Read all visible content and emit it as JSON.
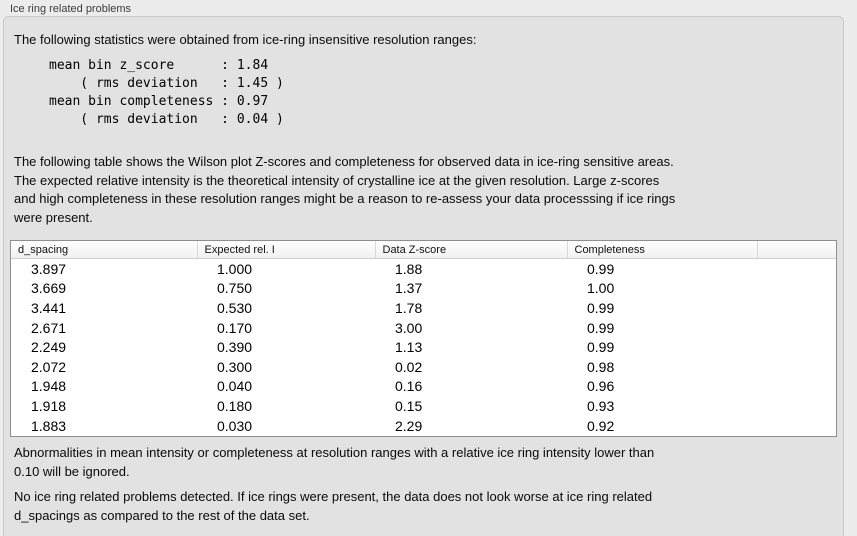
{
  "panel": {
    "title": "Ice ring related problems"
  },
  "intro_text": "The following statistics were obtained from ice-ring insensitive resolution ranges:",
  "stats_text": "mean bin z_score      : 1.84\n    ( rms deviation   : 1.45 )\nmean bin completeness : 0.97\n    ( rms deviation   : 0.04 )",
  "table_description": "The following table shows the Wilson plot Z-scores and completeness for observed data in ice-ring sensitive areas.\nThe expected relative intensity is the theoretical intensity of crystalline ice at the given resolution. Large z-scores\nand high completeness in these resolution ranges might be a reason to re-assess your data processsing if ice rings\nwere present.",
  "table": {
    "columns": [
      "d_spacing",
      "Expected rel. I",
      "Data Z-score",
      "Completeness"
    ],
    "rows": [
      [
        "3.897",
        "1.000",
        "1.88",
        "0.99"
      ],
      [
        "3.669",
        "0.750",
        "1.37",
        "1.00"
      ],
      [
        "3.441",
        "0.530",
        "1.78",
        "0.99"
      ],
      [
        "2.671",
        "0.170",
        "3.00",
        "0.99"
      ],
      [
        "2.249",
        "0.390",
        "1.13",
        "0.99"
      ],
      [
        "2.072",
        "0.300",
        "0.02",
        "0.98"
      ],
      [
        "1.948",
        "0.040",
        "0.16",
        "0.96"
      ],
      [
        "1.918",
        "0.180",
        "0.15",
        "0.93"
      ],
      [
        "1.883",
        "0.030",
        "2.29",
        "0.92"
      ]
    ]
  },
  "note_ignore": "Abnormalities in mean intensity or completeness at resolution ranges with a relative ice ring intensity lower than\n0.10 will be ignored.",
  "conclusion": "No ice ring related problems detected. If ice rings were present, the data does not look worse at ice ring related\nd_spacings as compared to the rest of the data set.",
  "colors": {
    "panel_background": "#e2e2e2",
    "outer_background": "#ececec",
    "table_background": "#ffffff",
    "table_border": "#8f8f8f",
    "groupbox_border": "#c9c9c9"
  }
}
